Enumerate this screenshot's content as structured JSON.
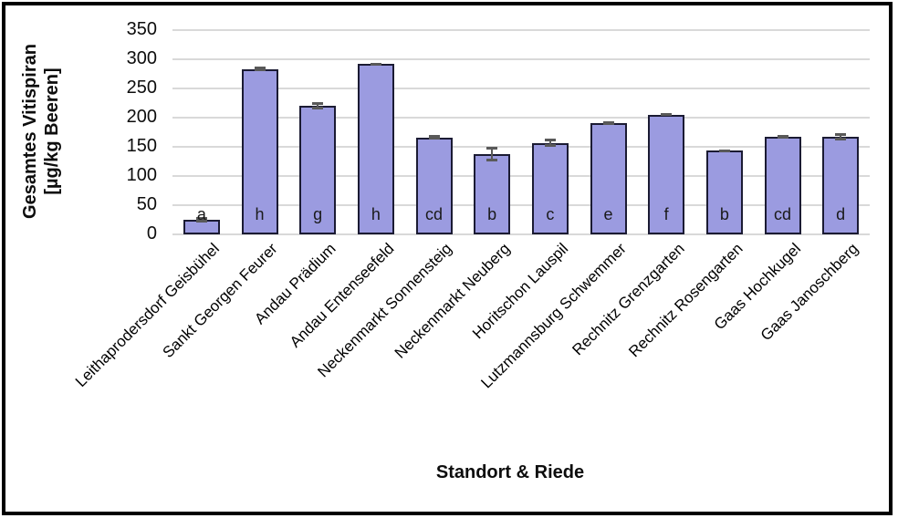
{
  "chart_data": {
    "type": "bar",
    "title": "",
    "xlabel": "Standort & Riede",
    "ylabel": "Gesamtes Vitispiran [µg/kg Beeren]",
    "ylabel_line1": "Gesamtes Vitispiran",
    "ylabel_line2": "[µg/kg Beeren]",
    "ylim": [
      0,
      350
    ],
    "yticks": [
      0,
      50,
      100,
      150,
      200,
      250,
      300,
      350
    ],
    "grid": true,
    "legend": "none",
    "categories": [
      "Leithaprodersdorf Geisbühel",
      "Sankt Georgen Feurer",
      "Andau Prädium",
      "Andau Entenseefeld",
      "Neckenmarkt Sonnensteig",
      "Neckenmarkt Neuberg",
      "Horitschon Lauspil",
      "Lutzmannsburg Schwemmer",
      "Rechnitz Grenzgarten",
      "Rechnitz Rosengarten",
      "Gaas Hochkugel",
      "Gaas Janoschberg"
    ],
    "values": [
      25,
      283,
      220,
      291,
      166,
      137,
      156,
      190,
      205,
      143,
      167,
      167
    ],
    "errors": [
      4,
      4,
      6,
      2,
      4,
      12,
      7,
      3,
      2,
      2,
      3,
      6
    ],
    "significance_letters": [
      "a",
      "h",
      "g",
      "h",
      "cd",
      "b",
      "c",
      "e",
      "f",
      "b",
      "cd",
      "d"
    ],
    "colors": {
      "bar_fill": "#9B9BE0",
      "bar_border": "#1B1B33",
      "error_bar": "#595959",
      "gridline": "#D9D9D9",
      "frame": "#000000",
      "text": "#0D0D0D"
    }
  }
}
